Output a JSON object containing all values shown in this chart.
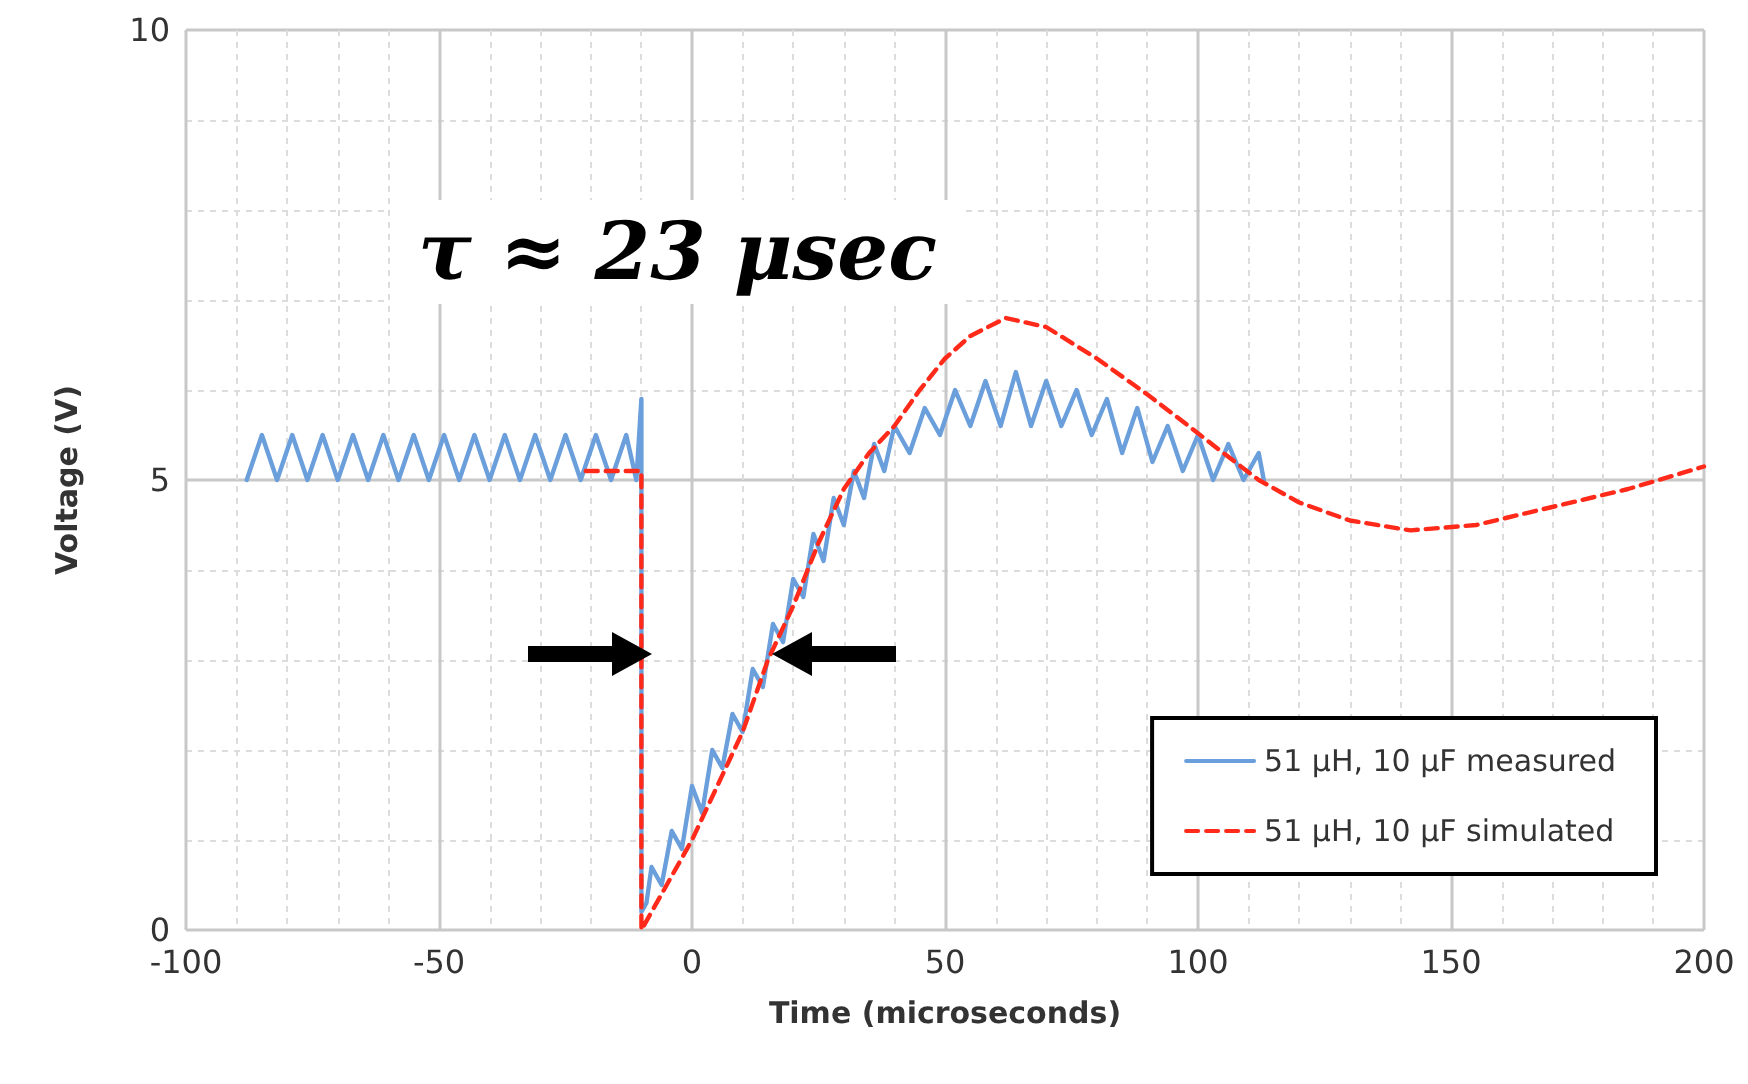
{
  "chart_data": {
    "type": "line",
    "xlabel": "Time (microseconds)",
    "ylabel": "Voltage (V)",
    "xlim": [
      -100,
      200
    ],
    "xticks": [
      -100,
      -50,
      0,
      50,
      100,
      150,
      200
    ],
    "ylim": [
      0,
      10
    ],
    "yticks": [
      0,
      5,
      10
    ],
    "grid": true,
    "legend": "bottom right",
    "marker": "none",
    "annotations": [
      "τ ≈ 23 μsec"
    ],
    "series": [
      {
        "name": "51 µH, 10 µF measured",
        "color": "#6a9fdc",
        "line_style": "solid",
        "x": [
          -88,
          -85,
          -82,
          -79,
          -76,
          -73,
          -70,
          -67,
          -64,
          -61,
          -58,
          -55,
          -52,
          -49,
          -46,
          -43,
          -40,
          -37,
          -34,
          -31,
          -28,
          -25,
          -22,
          -19,
          -16,
          -13,
          -11,
          -10,
          -10,
          -9,
          -8,
          -6,
          -4,
          -2,
          0,
          2,
          4,
          6,
          8,
          10,
          12,
          14,
          16,
          18,
          20,
          22,
          24,
          26,
          28,
          30,
          32,
          34,
          36,
          38,
          40,
          43,
          46,
          49,
          52,
          55,
          58,
          61,
          64,
          67,
          70,
          73,
          76,
          79,
          82,
          85,
          88,
          91,
          94,
          97,
          100,
          103,
          106,
          109,
          112,
          113
        ],
        "values": [
          5.0,
          5.5,
          5.0,
          5.5,
          5.0,
          5.5,
          5.0,
          5.5,
          5.0,
          5.5,
          5.0,
          5.5,
          5.0,
          5.5,
          5.0,
          5.5,
          5.0,
          5.5,
          5.0,
          5.5,
          5.0,
          5.5,
          5.0,
          5.5,
          5.0,
          5.5,
          5.0,
          5.9,
          0.2,
          0.3,
          0.7,
          0.5,
          1.1,
          0.9,
          1.6,
          1.3,
          2.0,
          1.8,
          2.4,
          2.2,
          2.9,
          2.7,
          3.4,
          3.2,
          3.9,
          3.7,
          4.4,
          4.1,
          4.8,
          4.5,
          5.1,
          4.8,
          5.4,
          5.1,
          5.6,
          5.3,
          5.8,
          5.5,
          6.0,
          5.6,
          6.1,
          5.6,
          6.2,
          5.6,
          6.1,
          5.6,
          6.0,
          5.5,
          5.9,
          5.3,
          5.8,
          5.2,
          5.6,
          5.1,
          5.5,
          5.0,
          5.4,
          5.0,
          5.3,
          5.0
        ]
      },
      {
        "name": "51 µH, 10 µF simulated",
        "color": "#ff2a1a",
        "line_style": "dashed",
        "x": [
          -21,
          -10,
          -10,
          0,
          10,
          15,
          20,
          25,
          30,
          35,
          40,
          45,
          50,
          55,
          62,
          70,
          80,
          90,
          97,
          105,
          112,
          120,
          130,
          142,
          155,
          170,
          185,
          200
        ],
        "values": [
          5.1,
          5.1,
          0,
          1.0,
          2.2,
          3.0,
          3.6,
          4.3,
          4.9,
          5.3,
          5.6,
          6.0,
          6.35,
          6.6,
          6.8,
          6.7,
          6.35,
          5.95,
          5.65,
          5.3,
          5.0,
          4.75,
          4.55,
          4.44,
          4.5,
          4.7,
          4.9,
          5.15
        ]
      }
    ]
  }
}
